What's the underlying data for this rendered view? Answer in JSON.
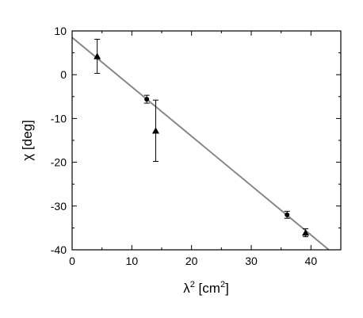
{
  "chart_data": {
    "type": "scatter",
    "xlabel": "λ",
    "xlabel_sup": "2",
    "xlabel_unit_open": " [cm",
    "xlabel_unit_sup": "2",
    "xlabel_unit_close": "]",
    "ylabel": "χ [deg]",
    "xlim": [
      0,
      45
    ],
    "ylim": [
      -40,
      10
    ],
    "x_ticks": [
      0,
      10,
      20,
      30,
      40
    ],
    "y_ticks": [
      10,
      0,
      -10,
      -20,
      -30,
      -40
    ],
    "x_tick_labels": [
      "0",
      "10",
      "20",
      "30",
      "40"
    ],
    "y_tick_labels": [
      "10",
      "0",
      "-10",
      "-20",
      "-30",
      "-40"
    ],
    "grid": false,
    "series": [
      {
        "marker": "triangle",
        "points": [
          {
            "x": 4.2,
            "y": 4.2,
            "err": 3.9
          },
          {
            "x": 14.0,
            "y": -12.8,
            "err": 7.0
          },
          {
            "x": 39.1,
            "y": -36.1,
            "err": 0.9
          }
        ]
      },
      {
        "marker": "circle",
        "points": [
          {
            "x": 12.5,
            "y": -5.6,
            "err": 0.9
          },
          {
            "x": 36.0,
            "y": -32.0,
            "err": 0.8
          }
        ]
      }
    ],
    "fit_line": {
      "x": [
        0,
        43.0
      ],
      "y": [
        8.5,
        -40.0
      ],
      "color": "#888888"
    }
  }
}
